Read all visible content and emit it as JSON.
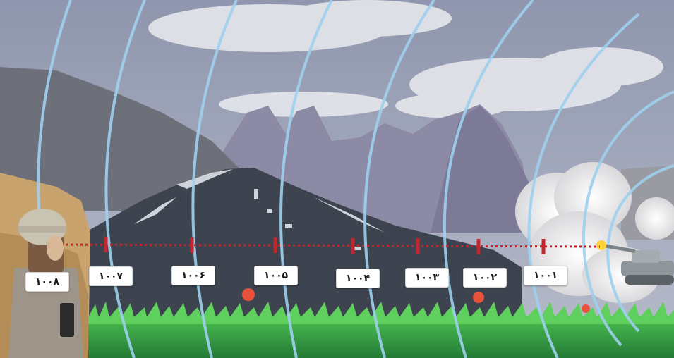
{
  "scene": {
    "subject": "sound-waves-from-tank-reaching-listener",
    "colors": {
      "sky": "#aeb3c4",
      "sky_top": "#8f96ad",
      "cloud": "#e6e7ec",
      "far_mountains": "#8d8aa6",
      "left_hills": "#6e7079",
      "main_mountain": "#3d4450",
      "snow": "#e9edf3",
      "grass": "#3fae46",
      "grass_dark": "#237a35",
      "wave": "#9ed0ee",
      "dotted_line": "#c1272d",
      "smoke": "#eeeeee",
      "cliff": "#c9a36e",
      "tank": "#8e969c",
      "flash": "#ffd23a"
    },
    "icons": [
      "soldier-icon",
      "tank-icon",
      "flower-icon",
      "smoke-cloud-icon",
      "muzzle-flash-icon"
    ]
  },
  "labels": [
    {
      "text": "۱۰۰۸"
    },
    {
      "text": "۱۰۰۷"
    },
    {
      "text": "۱۰۰۶"
    },
    {
      "text": "۱۰۰۵"
    },
    {
      "text": "۱۰۰۴"
    },
    {
      "text": "۱۰۰۳"
    },
    {
      "text": "۱۰۰۲"
    },
    {
      "text": "۱۰۰۱"
    }
  ]
}
